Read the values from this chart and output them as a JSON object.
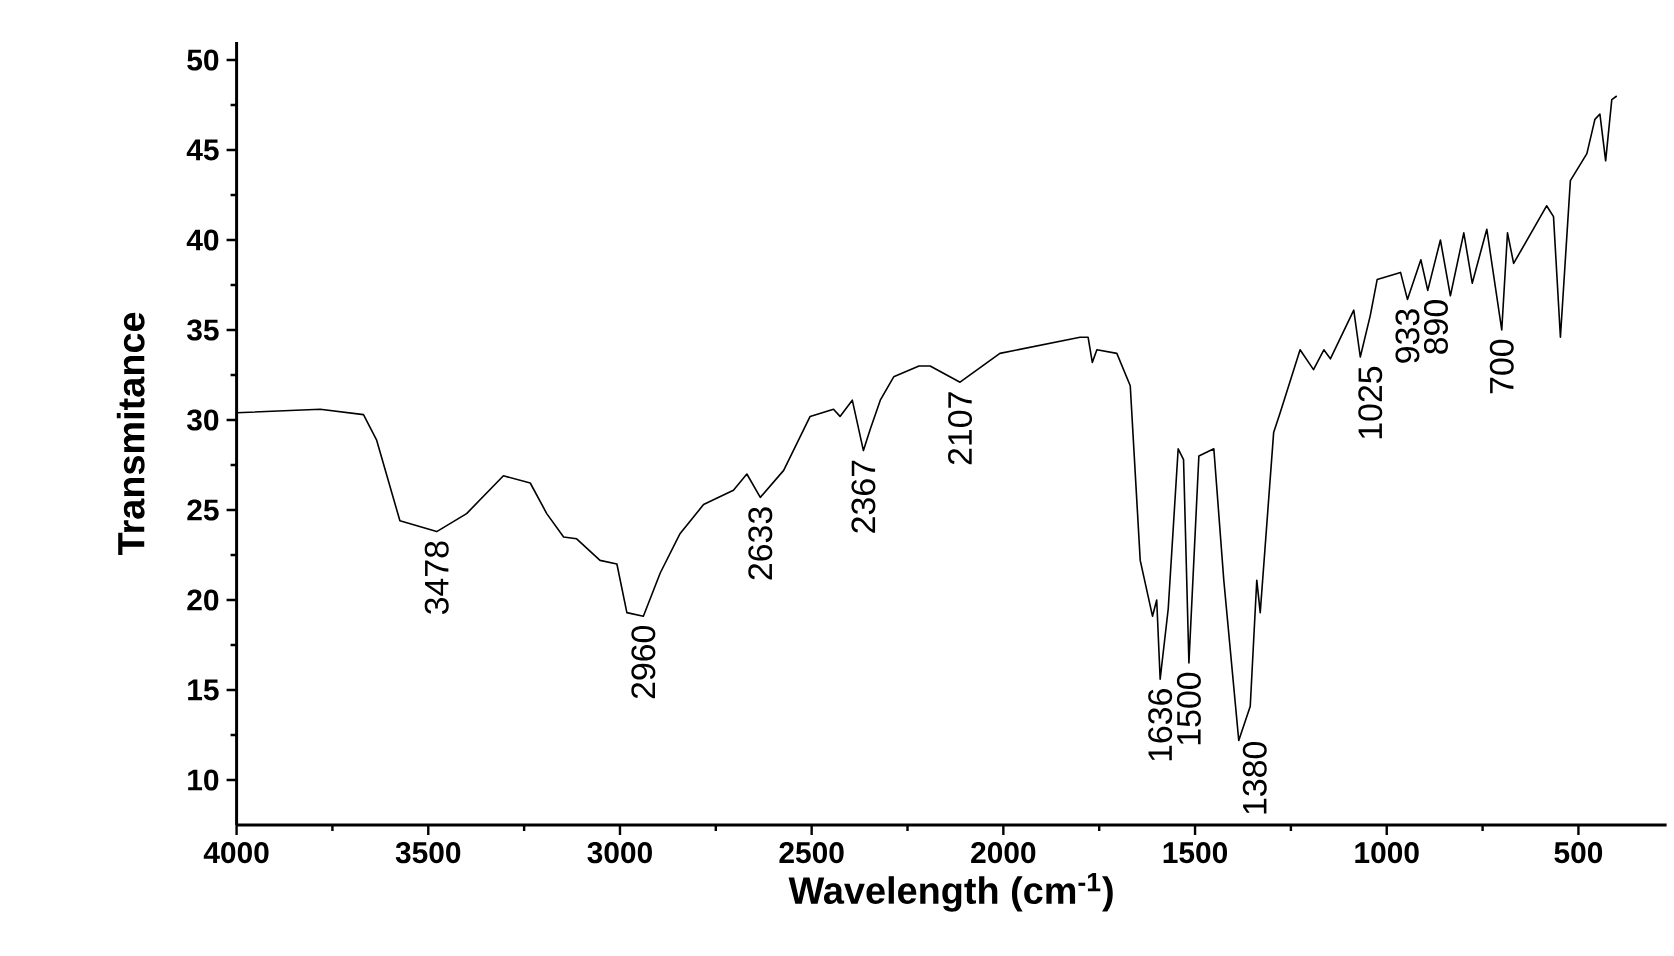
{
  "chart_data": {
    "type": "line",
    "xlabel": "Wavelength (cm$^{-1}$)",
    "ylabel": "Transmitance",
    "xlim": [
      4000,
      270
    ],
    "ylim": [
      7.5,
      51
    ],
    "xticks": [
      4000,
      3500,
      3000,
      2500,
      2000,
      1500,
      1000,
      500
    ],
    "yticks": [
      10,
      15,
      20,
      25,
      30,
      35,
      40,
      45,
      50
    ],
    "marker": "none",
    "line_style": "solid",
    "x": [
      4000,
      3782,
      3669,
      3635,
      3574,
      3478,
      3400,
      3304,
      3234,
      3191,
      3147,
      3113,
      3052,
      3008,
      2982,
      2939,
      2895,
      2843,
      2782,
      2704,
      2669,
      2634,
      2573,
      2504,
      2443,
      2426,
      2394,
      2365,
      2347,
      2321,
      2286,
      2220,
      2191,
      2113,
      2009,
      1800,
      1779,
      1768,
      1756,
      1704,
      1669,
      1643,
      1611,
      1600,
      1591,
      1570,
      1544,
      1530,
      1516,
      1490,
      1451,
      1425,
      1386,
      1356,
      1339,
      1330,
      1295,
      1278,
      1226,
      1191,
      1164,
      1147,
      1086,
      1069,
      1043,
      1025,
      964,
      946,
      911,
      893,
      860,
      834,
      799,
      777,
      739,
      700,
      685,
      669,
      583,
      565,
      547,
      521,
      478,
      457,
      444,
      429,
      413,
      400
    ],
    "series": [
      {
        "color": "#000000",
        "values": [
          30.4,
          30.6,
          30.3,
          28.9,
          24.4,
          23.8,
          24.8,
          26.9,
          26.5,
          24.8,
          23.5,
          23.4,
          22.2,
          22.0,
          19.3,
          19.1,
          21.5,
          23.7,
          25.3,
          26.1,
          27.0,
          25.7,
          27.2,
          30.2,
          30.6,
          30.2,
          31.1,
          28.3,
          29.5,
          31.1,
          32.4,
          33.0,
          33.0,
          32.1,
          33.7,
          34.6,
          34.6,
          33.2,
          33.9,
          33.7,
          31.9,
          22.2,
          19.1,
          20,
          15.6,
          19.5,
          28.4,
          27.8,
          16.5,
          28.0,
          28.4,
          21.1,
          12.2,
          14.1,
          21.1,
          19.3,
          29.3,
          30.4,
          33.9,
          32.8,
          33.9,
          33.4,
          36.1,
          33.5,
          35.8,
          37.8,
          38.2,
          36.7,
          38.9,
          37.2,
          40,
          36.9,
          40.4,
          37.6,
          40.6,
          35,
          40.4,
          38.7,
          41.9,
          41.3,
          34.6,
          43.3,
          44.8,
          46.7,
          47,
          44.4,
          47.8,
          48
        ]
      }
    ],
    "annotations": [
      {
        "text": "3478",
        "x": 3478,
        "y": 23.8
      },
      {
        "text": "2960",
        "x": 2939,
        "y": 19.1
      },
      {
        "text": "2633",
        "x": 2634,
        "y": 25.7
      },
      {
        "text": "2367",
        "x": 2365,
        "y": 28.3
      },
      {
        "text": "2107",
        "x": 2113,
        "y": 32.1
      },
      {
        "text": "1636",
        "x": 1591,
        "y": 15.6
      },
      {
        "text": "1500",
        "x": 1516,
        "y": 16.5
      },
      {
        "text": "1380",
        "x": 1386,
        "y": 12.2
      },
      {
        "text": "1025",
        "x": 1043,
        "y": 35.8
      },
      {
        "text": "933",
        "x": 946,
        "y": 36.7
      },
      {
        "text": "890",
        "x": 893,
        "y": 37.2
      },
      {
        "text": "700",
        "x": 700,
        "y": 35
      }
    ]
  }
}
